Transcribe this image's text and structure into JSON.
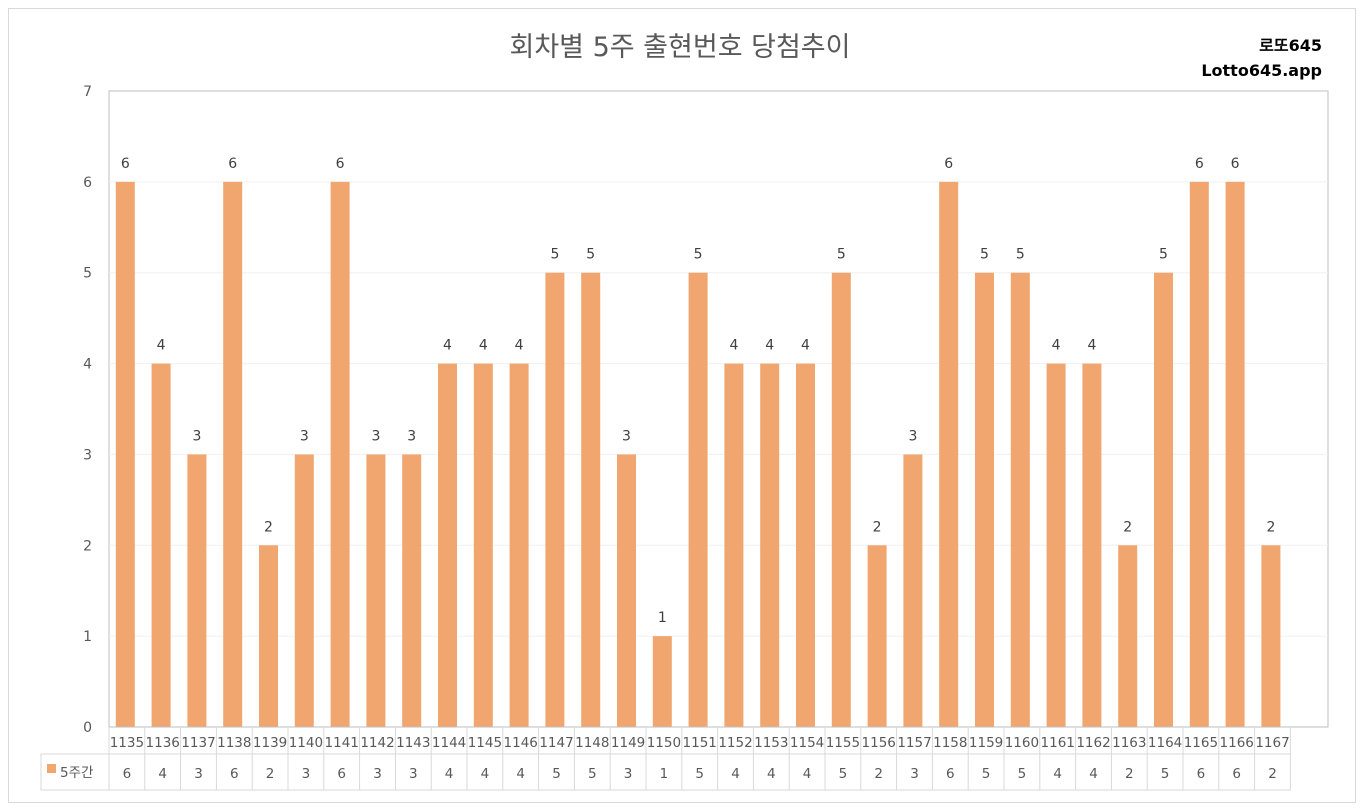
{
  "chart_data": {
    "type": "bar",
    "title": "회차별 5주 출현번호 당첨추이",
    "watermark": [
      "로또645",
      "Lotto645.app"
    ],
    "categories": [
      "1135",
      "1136",
      "1137",
      "1138",
      "1139",
      "1140",
      "1141",
      "1142",
      "1143",
      "1144",
      "1145",
      "1146",
      "1147",
      "1148",
      "1149",
      "1150",
      "1151",
      "1152",
      "1153",
      "1154",
      "1155",
      "1156",
      "1157",
      "1158",
      "1159",
      "1160",
      "1161",
      "1162",
      "1163",
      "1164",
      "1165",
      "1166",
      "1167"
    ],
    "series": [
      {
        "name": "5주간",
        "color": "#F0A66E",
        "values": [
          6,
          4,
          3,
          6,
          2,
          3,
          6,
          3,
          3,
          4,
          4,
          4,
          5,
          5,
          3,
          1,
          5,
          4,
          4,
          4,
          5,
          2,
          3,
          6,
          5,
          5,
          4,
          4,
          2,
          5,
          6,
          6,
          2
        ]
      }
    ],
    "ylim": [
      0,
      7
    ],
    "yticks": [
      0,
      1,
      2,
      3,
      4,
      5,
      6,
      7
    ],
    "grid": true,
    "legend": "data-table",
    "data_labels": true
  }
}
